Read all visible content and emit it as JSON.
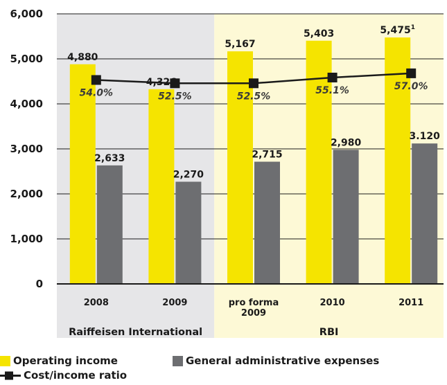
{
  "chart_data": {
    "type": "bar",
    "categories": [
      "2008",
      "2009",
      "pro forma 2009",
      "2010",
      "2011"
    ],
    "category_lines": [
      [
        "2008"
      ],
      [
        "2009"
      ],
      [
        "pro forma",
        "2009"
      ],
      [
        "2010"
      ],
      [
        "2011"
      ]
    ],
    "groups": [
      {
        "label": "Raiffeisen International",
        "categories": [
          "2008",
          "2009"
        ],
        "background": "#e6e6e8"
      },
      {
        "label": "RBI",
        "categories": [
          "pro forma 2009",
          "2010",
          "2011"
        ],
        "background": "#fdf9d6"
      }
    ],
    "series": [
      {
        "name": "Operating income",
        "type": "bar",
        "color": "#f5e400",
        "values": [
          4880,
          4326,
          5167,
          5403,
          5475
        ],
        "labels": [
          "4,880",
          "4,326",
          "5,167",
          "5,403",
          "5,475"
        ]
      },
      {
        "name": "General administrative expenses",
        "type": "bar",
        "color": "#6d6e71",
        "values": [
          2633,
          2270,
          2715,
          2980,
          3120
        ],
        "labels": [
          "2,633",
          "2,270",
          "2,715",
          "2,980",
          "3.120"
        ]
      },
      {
        "name": "Cost/income ratio",
        "type": "line",
        "color": "#1a1a1a",
        "marker": "square",
        "values": [
          54.0,
          52.5,
          52.5,
          55.1,
          57.0
        ],
        "labels": [
          "54.0%",
          "52.5%",
          "52.5%",
          "55.1%",
          "57.0%"
        ]
      }
    ],
    "annotations": [
      {
        "category": "2011",
        "series": "Operating income",
        "superscript": "1"
      }
    ],
    "yticks": [
      "0",
      "1,000",
      "2,000",
      "3,000",
      "4,000",
      "5,000",
      "6,000"
    ],
    "ylim": [
      0,
      6000
    ],
    "grid": true,
    "legend": "bottom-left"
  }
}
